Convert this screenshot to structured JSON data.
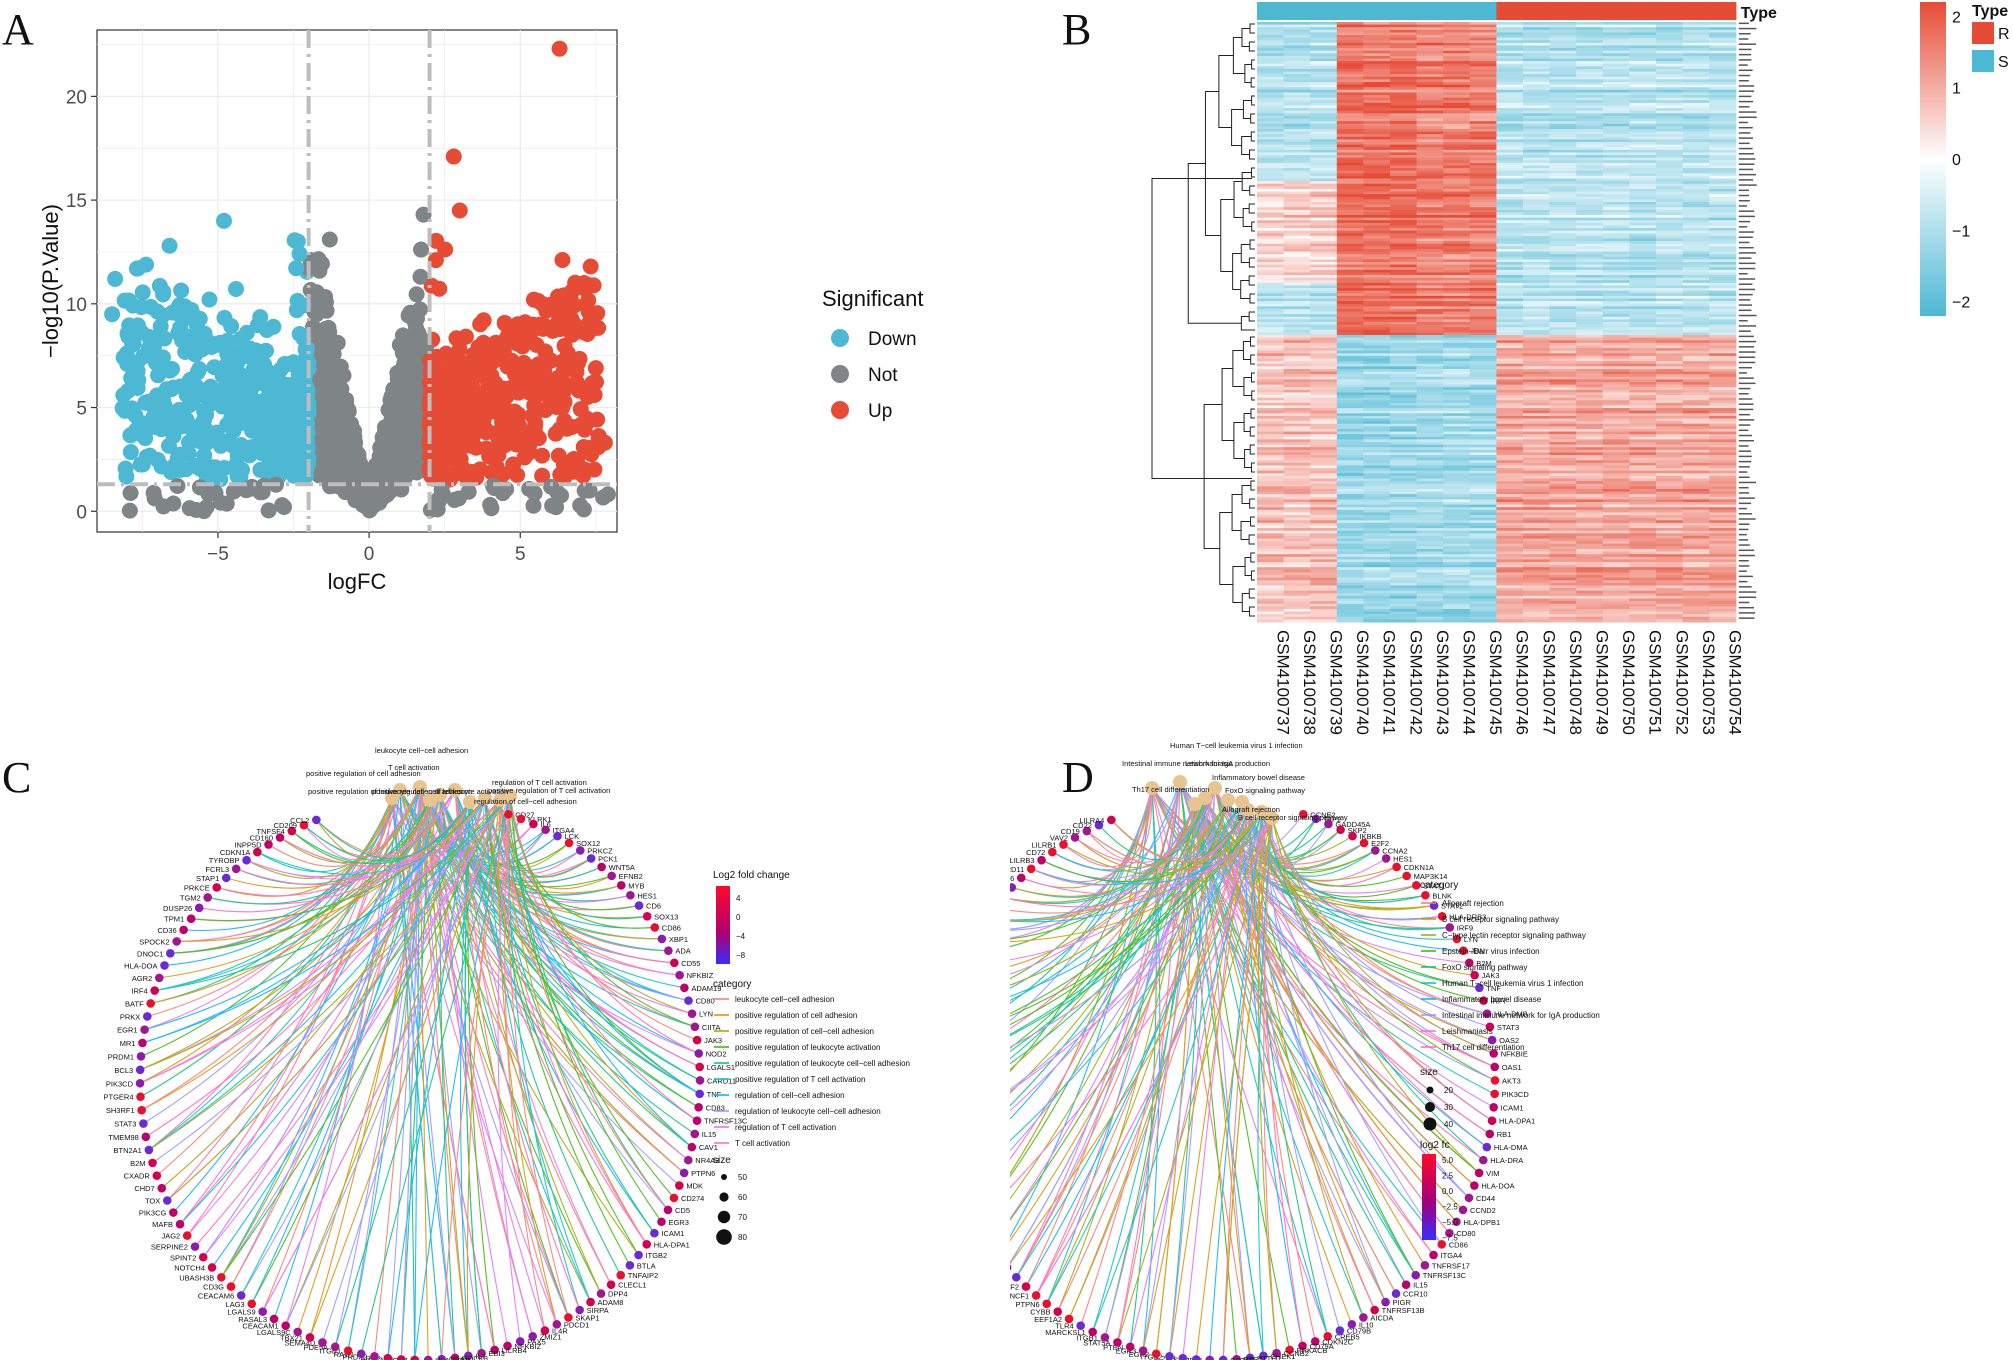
{
  "panels": {
    "a": "A",
    "b": "B",
    "c": "C",
    "d": "D"
  },
  "chart_data": [
    {
      "id": "volcano",
      "type": "scatter",
      "xlabel": "logFC",
      "ylabel": "−log10(P.Value)",
      "xlim": [
        -9,
        8.2
      ],
      "ylim": [
        -1,
        23.2
      ],
      "xticks": [
        -5,
        0,
        5
      ],
      "xtick_labels": [
        "−5",
        "0",
        "5"
      ],
      "yticks": [
        0,
        5,
        10,
        15,
        20
      ],
      "ytick_labels": [
        "0",
        "5",
        "10",
        "15",
        "20"
      ],
      "thresholds": {
        "logFC": [
          -2,
          2
        ],
        "y": 1.3
      },
      "legend": {
        "title": "Significant",
        "entries": [
          {
            "name": "Down",
            "color": "#4db8d4"
          },
          {
            "name": "Not",
            "color": "#7f8486"
          },
          {
            "name": "Up",
            "color": "#e64b35"
          }
        ]
      },
      "highlight_points": [
        {
          "x": 6.3,
          "y": 22.3,
          "group": "Up"
        },
        {
          "x": 2.8,
          "y": 17.1,
          "group": "Up"
        },
        {
          "x": 6.3,
          "y": 9.6,
          "group": "Up"
        },
        {
          "x": 7.5,
          "y": 6.9,
          "group": "Up"
        },
        {
          "x": 7.8,
          "y": 3.3,
          "group": "Up"
        },
        {
          "x": 7.1,
          "y": 3.1,
          "group": "Up"
        },
        {
          "x": 3.0,
          "y": 14.5,
          "group": "Up"
        },
        {
          "x": 1.8,
          "y": 14.3,
          "group": "Not"
        },
        {
          "x": -1.3,
          "y": 13.1,
          "group": "Not"
        },
        {
          "x": -8.4,
          "y": 11.2,
          "group": "Down"
        },
        {
          "x": -8.5,
          "y": 9.5,
          "group": "Down"
        },
        {
          "x": -4.8,
          "y": 14.0,
          "group": "Down"
        },
        {
          "x": -6.6,
          "y": 12.8,
          "group": "Down"
        },
        {
          "x": -8.0,
          "y": 7.1,
          "group": "Down"
        }
      ]
    },
    {
      "id": "heatmap",
      "type": "heatmap",
      "samples": [
        "GSM4100737",
        "GSM4100738",
        "GSM4100739",
        "GSM4100740",
        "GSM4100741",
        "GSM4100742",
        "GSM4100743",
        "GSM4100744",
        "GSM4100745",
        "GSM4100746",
        "GSM4100747",
        "GSM4100748",
        "GSM4100749",
        "GSM4100750",
        "GSM4100751",
        "GSM4100752",
        "GSM4100753",
        "GSM4100754"
      ],
      "sample_type": [
        "S",
        "S",
        "S",
        "S",
        "S",
        "S",
        "S",
        "S",
        "S",
        "R",
        "R",
        "R",
        "R",
        "R",
        "R",
        "R",
        "R",
        "R"
      ],
      "annotation_title": "Type",
      "type_legend": [
        {
          "name": "R",
          "color": "#e64b35"
        },
        {
          "name": "S",
          "color": "#4db8d4"
        }
      ],
      "colorbar": {
        "ticks": [
          2,
          1,
          0,
          -1,
          -2
        ],
        "labels": [
          "2",
          "1",
          "0",
          "−1",
          "−2"
        ],
        "min": -2.2,
        "max": 2.2
      },
      "clusters": [
        {
          "name": "cluster-1",
          "rows_fraction": 0.52,
          "block_values": [
            -0.9,
            1.7,
            1.5,
            -0.9
          ]
        },
        {
          "name": "cluster-2",
          "rows_fraction": 0.48,
          "block_values": [
            0.8,
            -1.2,
            -1.1,
            1.1
          ]
        }
      ]
    },
    {
      "id": "go-cnet",
      "type": "network",
      "genes": [
        "CD27",
        "KLRK1",
        "IL6",
        "ITGA4",
        "LCK",
        "SOX12",
        "PRKCZ",
        "PCK1",
        "WNT5A",
        "EFNB2",
        "MYB",
        "HES1",
        "CD6",
        "SOX13",
        "CD86",
        "XBP1",
        "ADA",
        "CD55",
        "NFKBIZ",
        "ADAM19",
        "CD80",
        "LYN",
        "CIITA",
        "JAK3",
        "NOD2",
        "LGALS1",
        "CARD11",
        "TNF",
        "CD83",
        "TNFRSF13C",
        "IL15",
        "CAV1",
        "NR4A3",
        "PTPN6",
        "MDK",
        "CD274",
        "CD5",
        "EGR3",
        "ICAM1",
        "HLA-DPA1",
        "ITGB2",
        "BTLA",
        "TNFAIP2",
        "CLECL1",
        "DPP4",
        "ADAM8",
        "SIRPA",
        "SKAP1",
        "PDCD1",
        "IL4R",
        "ZMIZ1",
        "PAX5",
        "NFKBIZ",
        "LILRB4",
        "EBI3",
        "IL7",
        "DOCK8",
        "CD44",
        "HLA-DPB1",
        "CCR7",
        "GCNT1",
        "ARG2",
        "PRDX2",
        "RAG1",
        "ITGB1",
        "PDE5A",
        "SEMA4D",
        "TBX21",
        "LGALS9C",
        "CEACAM1",
        "RASAL3",
        "LGALS9",
        "LAG3",
        "CEACAM6",
        "CD3G",
        "UBASH3B",
        "NOTCH4",
        "SPINT2",
        "SERPINE2",
        "JAG2",
        "MAFB",
        "PIK3CG",
        "TOX",
        "CHD7",
        "CXADR",
        "B2M",
        "BTN2A1",
        "TMEM98",
        "STAT3",
        "SH3RF1",
        "PTGER4",
        "PIK3CD",
        "BCL3",
        "PRDM1",
        "MR1",
        "EGR1",
        "PRKX",
        "BATF",
        "IRF4",
        "AGR2",
        "HLA-DOA",
        "DNOC1",
        "SPOCK2",
        "CD36",
        "TPM1",
        "DUSP26",
        "TGM2",
        "PRKCE",
        "STAP1",
        "FCRL3",
        "TYROBP",
        "CDKN1A",
        "INPP5D",
        "CD160",
        "TNFSF4",
        "CD209",
        "CCL2"
      ],
      "categories": [
        {
          "name": "leukocyte cell−cell adhesion",
          "color": "#f8766d"
        },
        {
          "name": "positive regulation of cell adhesion",
          "color": "#d89000"
        },
        {
          "name": "positive regulation of cell−cell adhesion",
          "color": "#a3a500"
        },
        {
          "name": "positive regulation of leukocyte activation",
          "color": "#39b600"
        },
        {
          "name": "positive regulation of leukocyte cell−cell adhesion",
          "color": "#00bf7d"
        },
        {
          "name": "positive regulation of T cell activation",
          "color": "#00bfc4"
        },
        {
          "name": "regulation of cell−cell adhesion",
          "color": "#00b0f6"
        },
        {
          "name": "regulation of leukocyte cell−cell adhesion",
          "color": "#9590ff"
        },
        {
          "name": "regulation of T cell activation",
          "color": "#e76bf3"
        },
        {
          "name": "T cell activation",
          "color": "#ff62bc"
        }
      ],
      "top_labels": [
        "positive regulation of leukocyte cell−cell adhesion",
        "leukocyte cell−cell adhesion",
        "T cell activation",
        "regulation of T cell activation",
        "positive regulation of T cell activation",
        "positive regulation of leukocyte activation",
        "positive regulation of cell adhesion",
        "regulation of cell−cell adhesion"
      ],
      "fc_legend": {
        "title": "Log2 fold change",
        "ticks": [
          "4",
          "0",
          "−4",
          "−8"
        ]
      },
      "category_title": "category",
      "size_legend": {
        "title": "size",
        "values": [
          "50",
          "60",
          "70",
          "80"
        ]
      }
    },
    {
      "id": "kegg-cnet",
      "type": "network",
      "genes": [
        "CCNE2",
        "TAP2",
        "GADD45A",
        "SKP2",
        "IKBKB",
        "E2F2",
        "CCNA2",
        "HES1",
        "CDKN1A",
        "MAP3K14",
        "STAT1",
        "BLNK",
        "STAT2",
        "HLA-DRB3",
        "IRF9",
        "LYN",
        "JUN",
        "B2M",
        "JAK3",
        "TNF",
        "IRF7",
        "HLA-DMB",
        "STAT3",
        "OAS2",
        "NFKBIE",
        "OAS1",
        "AKT3",
        "PIK3CD",
        "ICAM1",
        "HLA-DPA1",
        "RB1",
        "HLA-DMA",
        "HLA-DRA",
        "VIM",
        "HLA-DOA",
        "CD44",
        "CCND2",
        "HLA-DPB1",
        "CD80",
        "CD86",
        "ITGA4",
        "TNFRSF17",
        "TNFRSF13C",
        "IL15",
        "CCR10",
        "PIGR",
        "TNFRSF13B",
        "AICDA",
        "IL10",
        "CD79B",
        "CREB5",
        "CDKN2C",
        "CD79A",
        "PRKACB",
        "CCNB2",
        "CHEK1",
        "PTTG1",
        "ETS2",
        "CRTC3",
        "ZFP36",
        "TSPO",
        "IL2RB",
        "ITGB2",
        "EGR2",
        "EGR3",
        "PTEN",
        "STAT5A",
        "ITGB1",
        "MARCKSL1",
        "TLR4",
        "EEF1A2",
        "CYBB",
        "PTPN6",
        "NCF1",
        "NCF2",
        "AHR",
        "TBX21",
        "RXRA",
        "IL21R",
        "IL4R",
        "EBI3",
        "IRF4",
        "ITPR2",
        "PLK3",
        "IL17D",
        "ITPR1",
        "RRAS2",
        "EGR1",
        "BCL3",
        "CASP1",
        "NOD2",
        "PAK1",
        "S1PR4",
        "PCK1",
        "BNIP3",
        "HOMER3",
        "FBXO32",
        "EGFR",
        "S1PR1",
        "PRKAG2",
        "IRS2",
        "TNFSF13B",
        "FBXO25",
        "KLF2",
        "BANK1",
        "GZMB",
        "INPP5D",
        "RASGRP3",
        "LILRA6",
        "CARD11",
        "LILRB3",
        "CD72",
        "LILRB1",
        "VAV2",
        "CD19",
        "CD22",
        "LILRA4"
      ],
      "categories": [
        {
          "name": "Allograft rejection",
          "color": "#f8766d"
        },
        {
          "name": "B cell receptor signaling pathway",
          "color": "#d89000"
        },
        {
          "name": "C−type lectin receptor signaling pathway",
          "color": "#a3a500"
        },
        {
          "name": "Epstein−Barr virus infection",
          "color": "#39b600"
        },
        {
          "name": "FoxO signaling pathway",
          "color": "#00bf7d"
        },
        {
          "name": "Human T−cell leukemia virus 1 infection",
          "color": "#00bfc4"
        },
        {
          "name": "Inflammatory bowel disease",
          "color": "#00b0f6"
        },
        {
          "name": "Intestinal immune network for IgA production",
          "color": "#9590ff"
        },
        {
          "name": "Leishmaniasis",
          "color": "#e76bf3"
        },
        {
          "name": "Th17 cell differentiation",
          "color": "#ff62bc"
        }
      ],
      "top_labels": [
        "Intestinal immune network for IgA production",
        "Human T−cell leukemia virus 1 infection",
        "Leishmaniasis",
        "Inflammatory bowel disease",
        "FoxO signaling pathway",
        "Th17 cell differentiation",
        "Allograft rejection",
        "B cell receptor signaling pathway"
      ],
      "category_title": "category",
      "size_legend": {
        "title": "size",
        "values": [
          "20",
          "30",
          "40"
        ]
      },
      "fc_legend": {
        "title": "log2 fc",
        "ticks": [
          "5.0",
          "2.5",
          "0.0",
          "−2.5",
          "−5.0",
          "−7.5"
        ]
      }
    }
  ]
}
